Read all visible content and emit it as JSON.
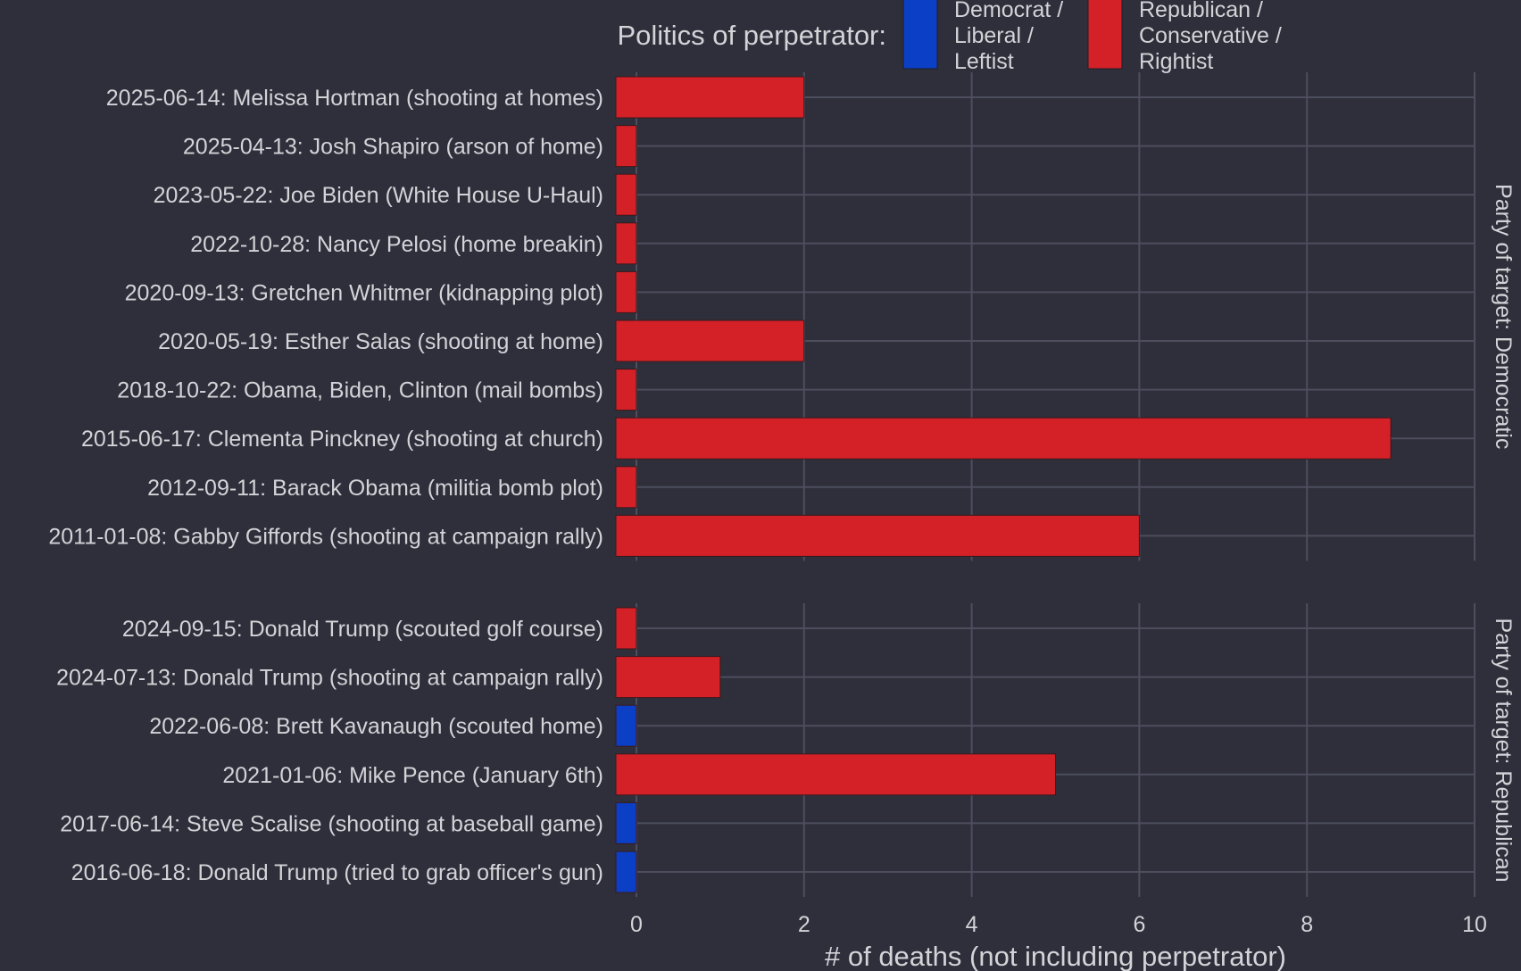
{
  "chart_data": {
    "type": "bar",
    "orientation": "horizontal",
    "xlabel": "# of deaths (not including perpetrator)",
    "xlim": [
      0,
      10
    ],
    "xticks": [
      0,
      2,
      4,
      6,
      8,
      10
    ],
    "grid": true,
    "legend": {
      "title": "Politics of perpetrator:",
      "placement": "top",
      "entries": [
        {
          "lines": [
            "Democrat /",
            "Liberal /",
            "Leftist"
          ],
          "color": "#0a3fc6"
        },
        {
          "lines": [
            "Republican /",
            "Conservative /",
            "Rightist"
          ],
          "color": "#d42027"
        }
      ]
    },
    "facets": [
      {
        "label": "Party of target: Democratic",
        "bars": [
          {
            "label": "2025-06-14: Melissa Hortman (shooting at homes)",
            "value": 2,
            "perpetrator": "Republican / Conservative / Rightist"
          },
          {
            "label": "2025-04-13: Josh Shapiro (arson of home)",
            "value": 0,
            "perpetrator": "Republican / Conservative / Rightist"
          },
          {
            "label": "2023-05-22: Joe Biden (White House U-Haul)",
            "value": 0,
            "perpetrator": "Republican / Conservative / Rightist"
          },
          {
            "label": "2022-10-28: Nancy Pelosi (home breakin)",
            "value": 0,
            "perpetrator": "Republican / Conservative / Rightist"
          },
          {
            "label": "2020-09-13: Gretchen Whitmer (kidnapping plot)",
            "value": 0,
            "perpetrator": "Republican / Conservative / Rightist"
          },
          {
            "label": "2020-05-19: Esther Salas (shooting at home)",
            "value": 2,
            "perpetrator": "Republican / Conservative / Rightist"
          },
          {
            "label": "2018-10-22: Obama, Biden, Clinton (mail bombs)",
            "value": 0,
            "perpetrator": "Republican / Conservative / Rightist"
          },
          {
            "label": "2015-06-17: Clementa Pinckney (shooting at church)",
            "value": 9,
            "perpetrator": "Republican / Conservative / Rightist"
          },
          {
            "label": "2012-09-11: Barack Obama (militia bomb plot)",
            "value": 0,
            "perpetrator": "Republican / Conservative / Rightist"
          },
          {
            "label": "2011-01-08: Gabby Giffords (shooting at campaign rally)",
            "value": 6,
            "perpetrator": "Republican / Conservative / Rightist"
          }
        ]
      },
      {
        "label": "Party of target: Republican",
        "bars": [
          {
            "label": "2024-09-15: Donald Trump (scouted golf course)",
            "value": 0,
            "perpetrator": "Republican / Conservative / Rightist"
          },
          {
            "label": "2024-07-13: Donald Trump (shooting at campaign rally)",
            "value": 1,
            "perpetrator": "Republican / Conservative / Rightist"
          },
          {
            "label": "2022-06-08: Brett Kavanaugh (scouted home)",
            "value": 0,
            "perpetrator": "Democrat / Liberal / Leftist"
          },
          {
            "label": "2021-01-06: Mike Pence (January 6th)",
            "value": 5,
            "perpetrator": "Republican / Conservative / Rightist"
          },
          {
            "label": "2017-06-14: Steve Scalise (shooting at baseball game)",
            "value": 0,
            "perpetrator": "Democrat / Liberal / Leftist"
          },
          {
            "label": "2016-06-18: Donald Trump (tried to grab officer's gun)",
            "value": 0,
            "perpetrator": "Democrat / Liberal / Leftist"
          }
        ]
      }
    ],
    "colors": {
      "background": "#2e2f3a",
      "grid": "#4d4e5e",
      "democrat": "#0a3fc6",
      "republican": "#d42027",
      "text": "#d3d3d8"
    }
  }
}
